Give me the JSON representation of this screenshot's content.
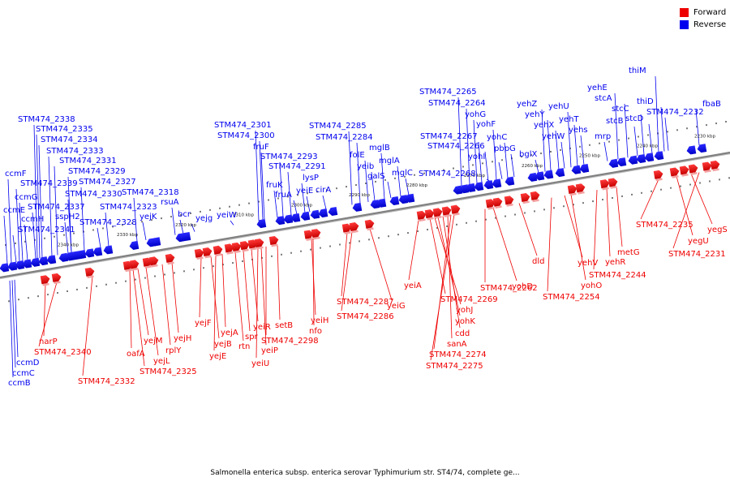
{
  "legend": [
    {
      "label": "Forward",
      "color": "#ee0000"
    },
    {
      "label": "Reverse",
      "color": "#0000ee"
    }
  ],
  "caption": "Salmonella enterica subsp. enterica serovar Typhimurium str. ST4/74, complete ge...",
  "colors": {
    "forward": "#ee0000",
    "reverse": "#0000ee",
    "backbone": "#808080"
  },
  "scale_labels": [
    "2340 kbp",
    "2330 kbp",
    "2320 kbp",
    "2310 kbp",
    "2300 kbp",
    "2290 kbp",
    "2280 kbp",
    "2270 kbp",
    "2260 kbp",
    "2250 kbp",
    "2240 kbp",
    "2230 kbp"
  ],
  "reverse_genes": [
    "STM474_2338",
    "STM474_2335",
    "STM474_2334",
    "STM474_2333",
    "STM474_2331",
    "ccmF",
    "STM474_2329",
    "STM474_2327",
    "STM474_2339",
    "STM474_2330",
    "ccmG",
    "STM474_2337",
    "ccmE",
    "ccmH",
    "sspH2",
    "STM474_2341",
    "STM474_2328",
    "STM474_2323",
    "yejK",
    "STM474_2318",
    "rsuA",
    "bcr",
    "yejg",
    "yeiW",
    "STM474_2301",
    "STM474_2300",
    "fruF",
    "fruK",
    "STM474_2293",
    "STM474_2291",
    "fruA",
    "lysP",
    "yeiE",
    "cirA",
    "STM474_2285",
    "STM474_2284",
    "folE",
    "yeib",
    "mglB",
    "galS",
    "mglA",
    "mglC",
    "STM474_2265",
    "STM474_2264",
    "yohG",
    "STM474_2267",
    "STM474_2266",
    "yohF",
    "yohI",
    "STM474_2268",
    "yohC",
    "pbpG",
    "yehZ",
    "yehY",
    "bglX",
    "yehX",
    "yehW",
    "yehU",
    "yehT",
    "yehs",
    "yehE",
    "stcA",
    "mrp",
    "stcC",
    "stcB",
    "thiM",
    "thiD",
    "stcD",
    "STM474_2232",
    "fbaB",
    "ccmD",
    "ccmC",
    "ccmB"
  ],
  "forward_genes": [
    "narP",
    "STM474_2340",
    "STM474_2332",
    "oafA",
    "yejM",
    "yejL",
    "STM474_2325",
    "rplY",
    "yejH",
    "yejF",
    "yejB",
    "yejA",
    "yejE",
    "rtn",
    "spr",
    "yeiR",
    "yeiP",
    "yeiU",
    "STM474_2298",
    "setB",
    "yeiH",
    "nfo",
    "STM474_2287",
    "STM474_2286",
    "yeiG",
    "yeiA",
    "STM474_2269",
    "yohJ",
    "yohK",
    "cdd",
    "sanA",
    "STM474_2274",
    "STM474_2275",
    "yohD",
    "STM474_2262",
    "dld",
    "STM474_2254",
    "yehV",
    "yohO",
    "yehR",
    "metG",
    "STM474_2244",
    "STM474_2235",
    "yegU",
    "yegS",
    "STM474_2231"
  ]
}
